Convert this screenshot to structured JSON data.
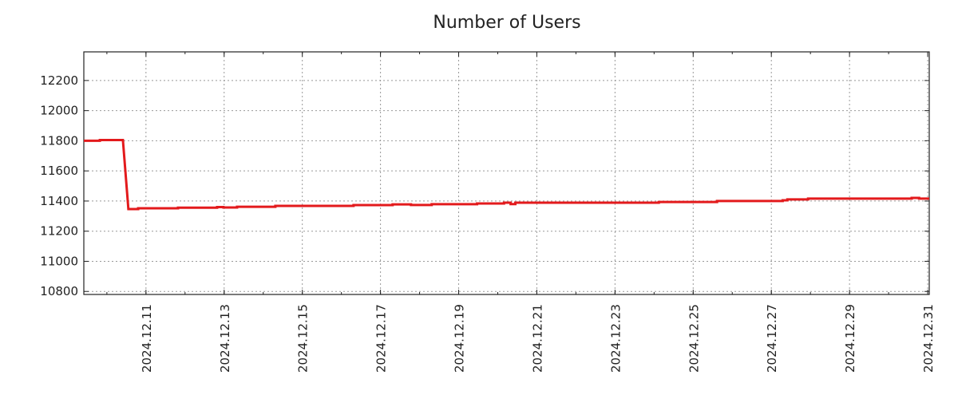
{
  "chart_data": {
    "type": "line",
    "title": "Number of Users",
    "xlabel": "",
    "ylabel": "",
    "x_unit": "day of December 2024",
    "xlim": [
      9.41,
      31.04
    ],
    "ylim": [
      10780,
      12390
    ],
    "grid": true,
    "line_color": "#e31a1c",
    "y_ticks": [
      10800,
      11000,
      11200,
      11400,
      11600,
      11800,
      12000,
      12200
    ],
    "x_ticks": [
      {
        "x": 11,
        "label": "2024.12.11"
      },
      {
        "x": 13,
        "label": "2024.12.13"
      },
      {
        "x": 15,
        "label": "2024.12.15"
      },
      {
        "x": 17,
        "label": "2024.12.17"
      },
      {
        "x": 19,
        "label": "2024.12.19"
      },
      {
        "x": 21,
        "label": "2024.12.21"
      },
      {
        "x": 23,
        "label": "2024.12.23"
      },
      {
        "x": 25,
        "label": "2024.12.25"
      },
      {
        "x": 27,
        "label": "2024.12.27"
      },
      {
        "x": 29,
        "label": "2024.12.29"
      },
      {
        "x": 31,
        "label": "2024.12.31"
      }
    ],
    "series": [
      {
        "name": "Number of Users",
        "x": [
          9.41,
          9.82,
          10.41,
          10.55,
          10.8,
          11.82,
          12.82,
          12.98,
          13.33,
          14.31,
          16.31,
          17.31,
          17.78,
          18.31,
          19.47,
          20.16,
          20.33,
          20.45,
          24.12,
          25.61,
          27.29,
          27.41,
          27.94,
          30.59,
          30.78,
          31.04
        ],
        "y": [
          11800,
          11805,
          11805,
          11347,
          11352,
          11356,
          11360,
          11357,
          11362,
          11368,
          11373,
          11378,
          11374,
          11379,
          11384,
          11389,
          11380,
          11389,
          11394,
          11400,
          11405,
          11411,
          11416,
          11421,
          11416,
          11416
        ]
      }
    ]
  }
}
